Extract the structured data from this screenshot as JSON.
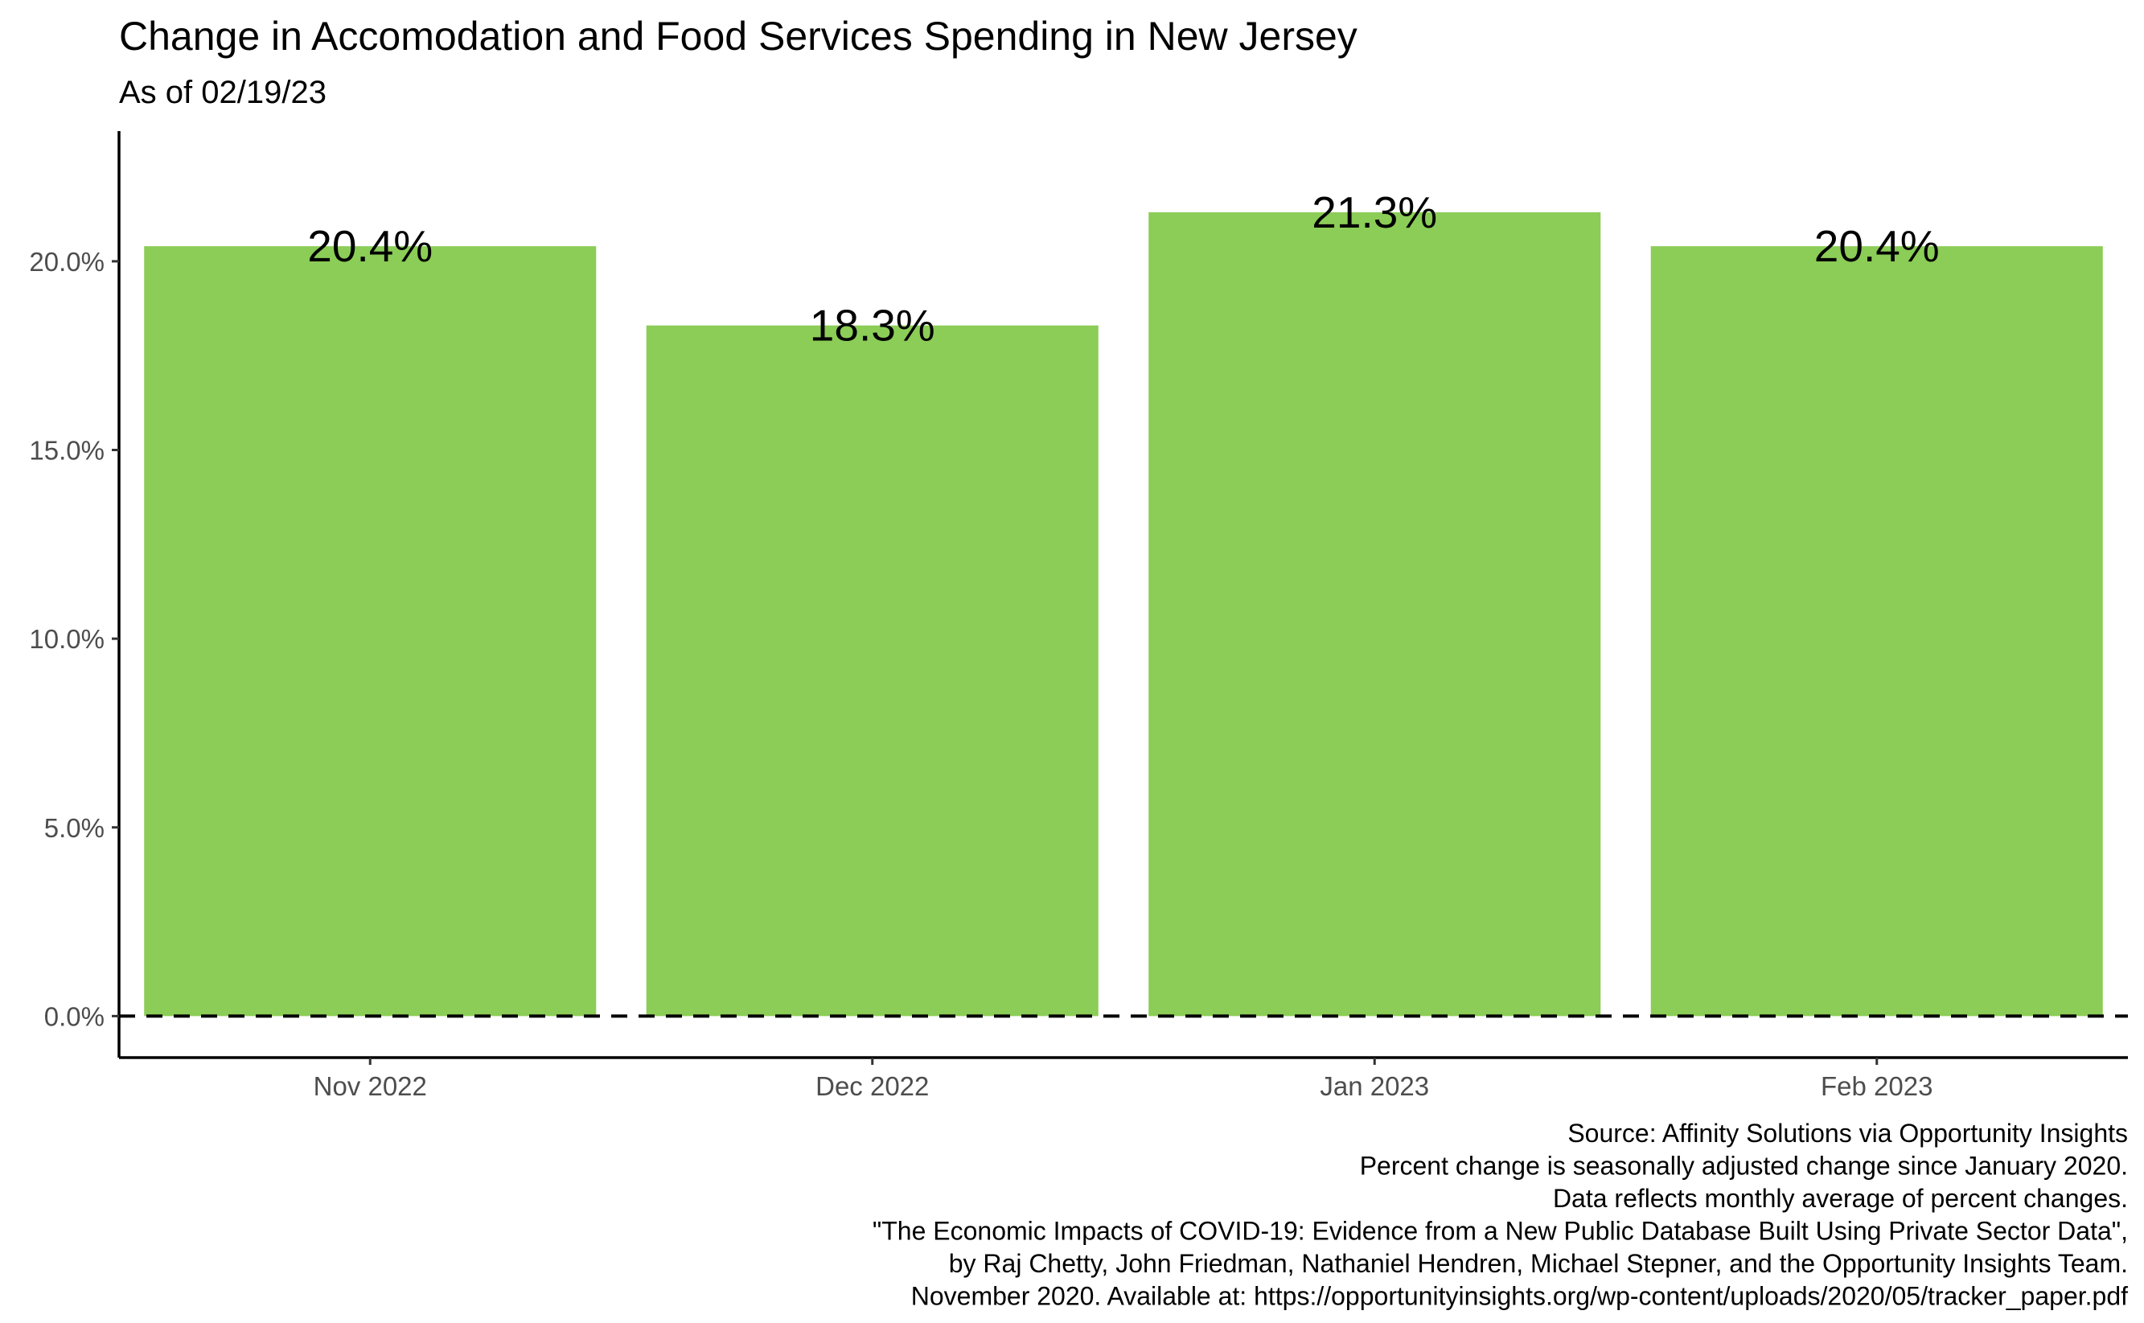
{
  "chart_data": {
    "type": "bar",
    "title": "Change in Accomodation and Food Services Spending in New Jersey",
    "subtitle": "As of 02/19/23",
    "categories": [
      "Nov 2022",
      "Dec 2022",
      "Jan 2023",
      "Feb 2023"
    ],
    "values": [
      20.4,
      18.3,
      21.3,
      20.4
    ],
    "data_labels": [
      "20.4%",
      "18.3%",
      "21.3%",
      "20.4%"
    ],
    "y_ticks": [
      0,
      5,
      10,
      15,
      20
    ],
    "y_tick_labels": [
      "0.0%",
      "5.0%",
      "10.0%",
      "15.0%",
      "20.0%"
    ],
    "ylim": [
      -1.1,
      23.45
    ],
    "xlabel": "",
    "ylabel": "",
    "grid": false,
    "legend": "none",
    "reference_line": {
      "y": 0,
      "style": "dashed"
    },
    "bar_color": "#8bcd57",
    "caption": [
      "Source: Affinity Solutions via Opportunity Insights",
      "Percent change is seasonally adjusted change since January 2020.",
      "Data reflects monthly average of percent changes.",
      "\"The Economic Impacts of COVID-19: Evidence from a New Public Database Built Using Private Sector Data\",",
      "by Raj Chetty, John Friedman, Nathaniel Hendren, Michael Stepner, and the Opportunity Insights Team.",
      "November 2020. Available at: https://opportunityinsights.org/wp-content/uploads/2020/05/tracker_paper.pdf"
    ]
  }
}
